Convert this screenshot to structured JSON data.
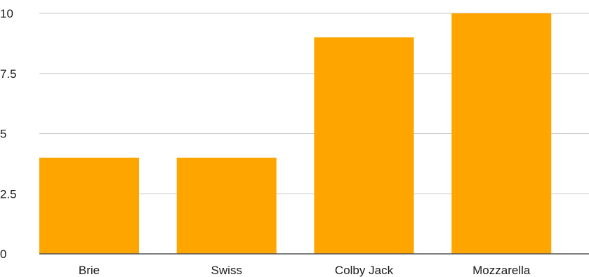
{
  "chart_data": {
    "type": "bar",
    "categories": [
      "Brie",
      "Swiss",
      "Colby Jack",
      "Mozzarella"
    ],
    "values": [
      4,
      4,
      9,
      10
    ],
    "title": "",
    "xlabel": "",
    "ylabel": "",
    "ylim": [
      0,
      10
    ],
    "yticks": [
      0,
      2.5,
      5,
      7.5,
      10
    ],
    "ytick_labels": [
      "0",
      "2.5",
      "5",
      "7.5",
      "10"
    ],
    "grid": true,
    "bar_color": "#FFA500",
    "legend": "none"
  }
}
